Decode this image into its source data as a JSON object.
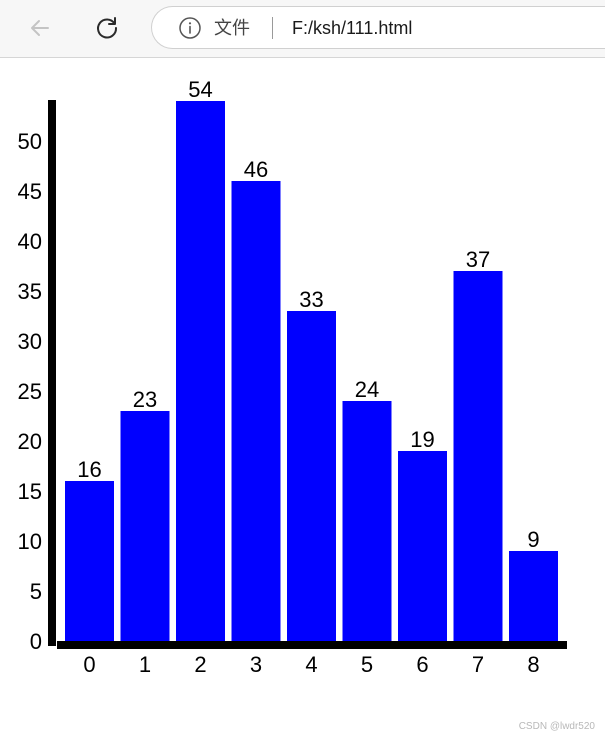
{
  "browser": {
    "site_label": "文件",
    "url": "F:/ksh/111.html"
  },
  "icons": {
    "back": "back-arrow-icon",
    "reload": "reload-icon",
    "info": "info-icon"
  },
  "chart_data": {
    "type": "bar",
    "categories": [
      "0",
      "1",
      "2",
      "3",
      "4",
      "5",
      "6",
      "7",
      "8"
    ],
    "values": [
      16,
      23,
      54,
      46,
      33,
      24,
      19,
      37,
      9
    ],
    "data_labels": [
      "16",
      "23",
      "54",
      "46",
      "33",
      "24",
      "19",
      "37",
      "9"
    ],
    "y_ticks": [
      0,
      5,
      10,
      15,
      20,
      25,
      30,
      35,
      40,
      45,
      50
    ],
    "ylim": [
      0,
      54
    ],
    "bar_color": "#0000ff",
    "axis_color": "#000000",
    "grid": false,
    "title": "",
    "xlabel": "",
    "ylabel": ""
  },
  "watermark": "CSDN @lwdr520"
}
